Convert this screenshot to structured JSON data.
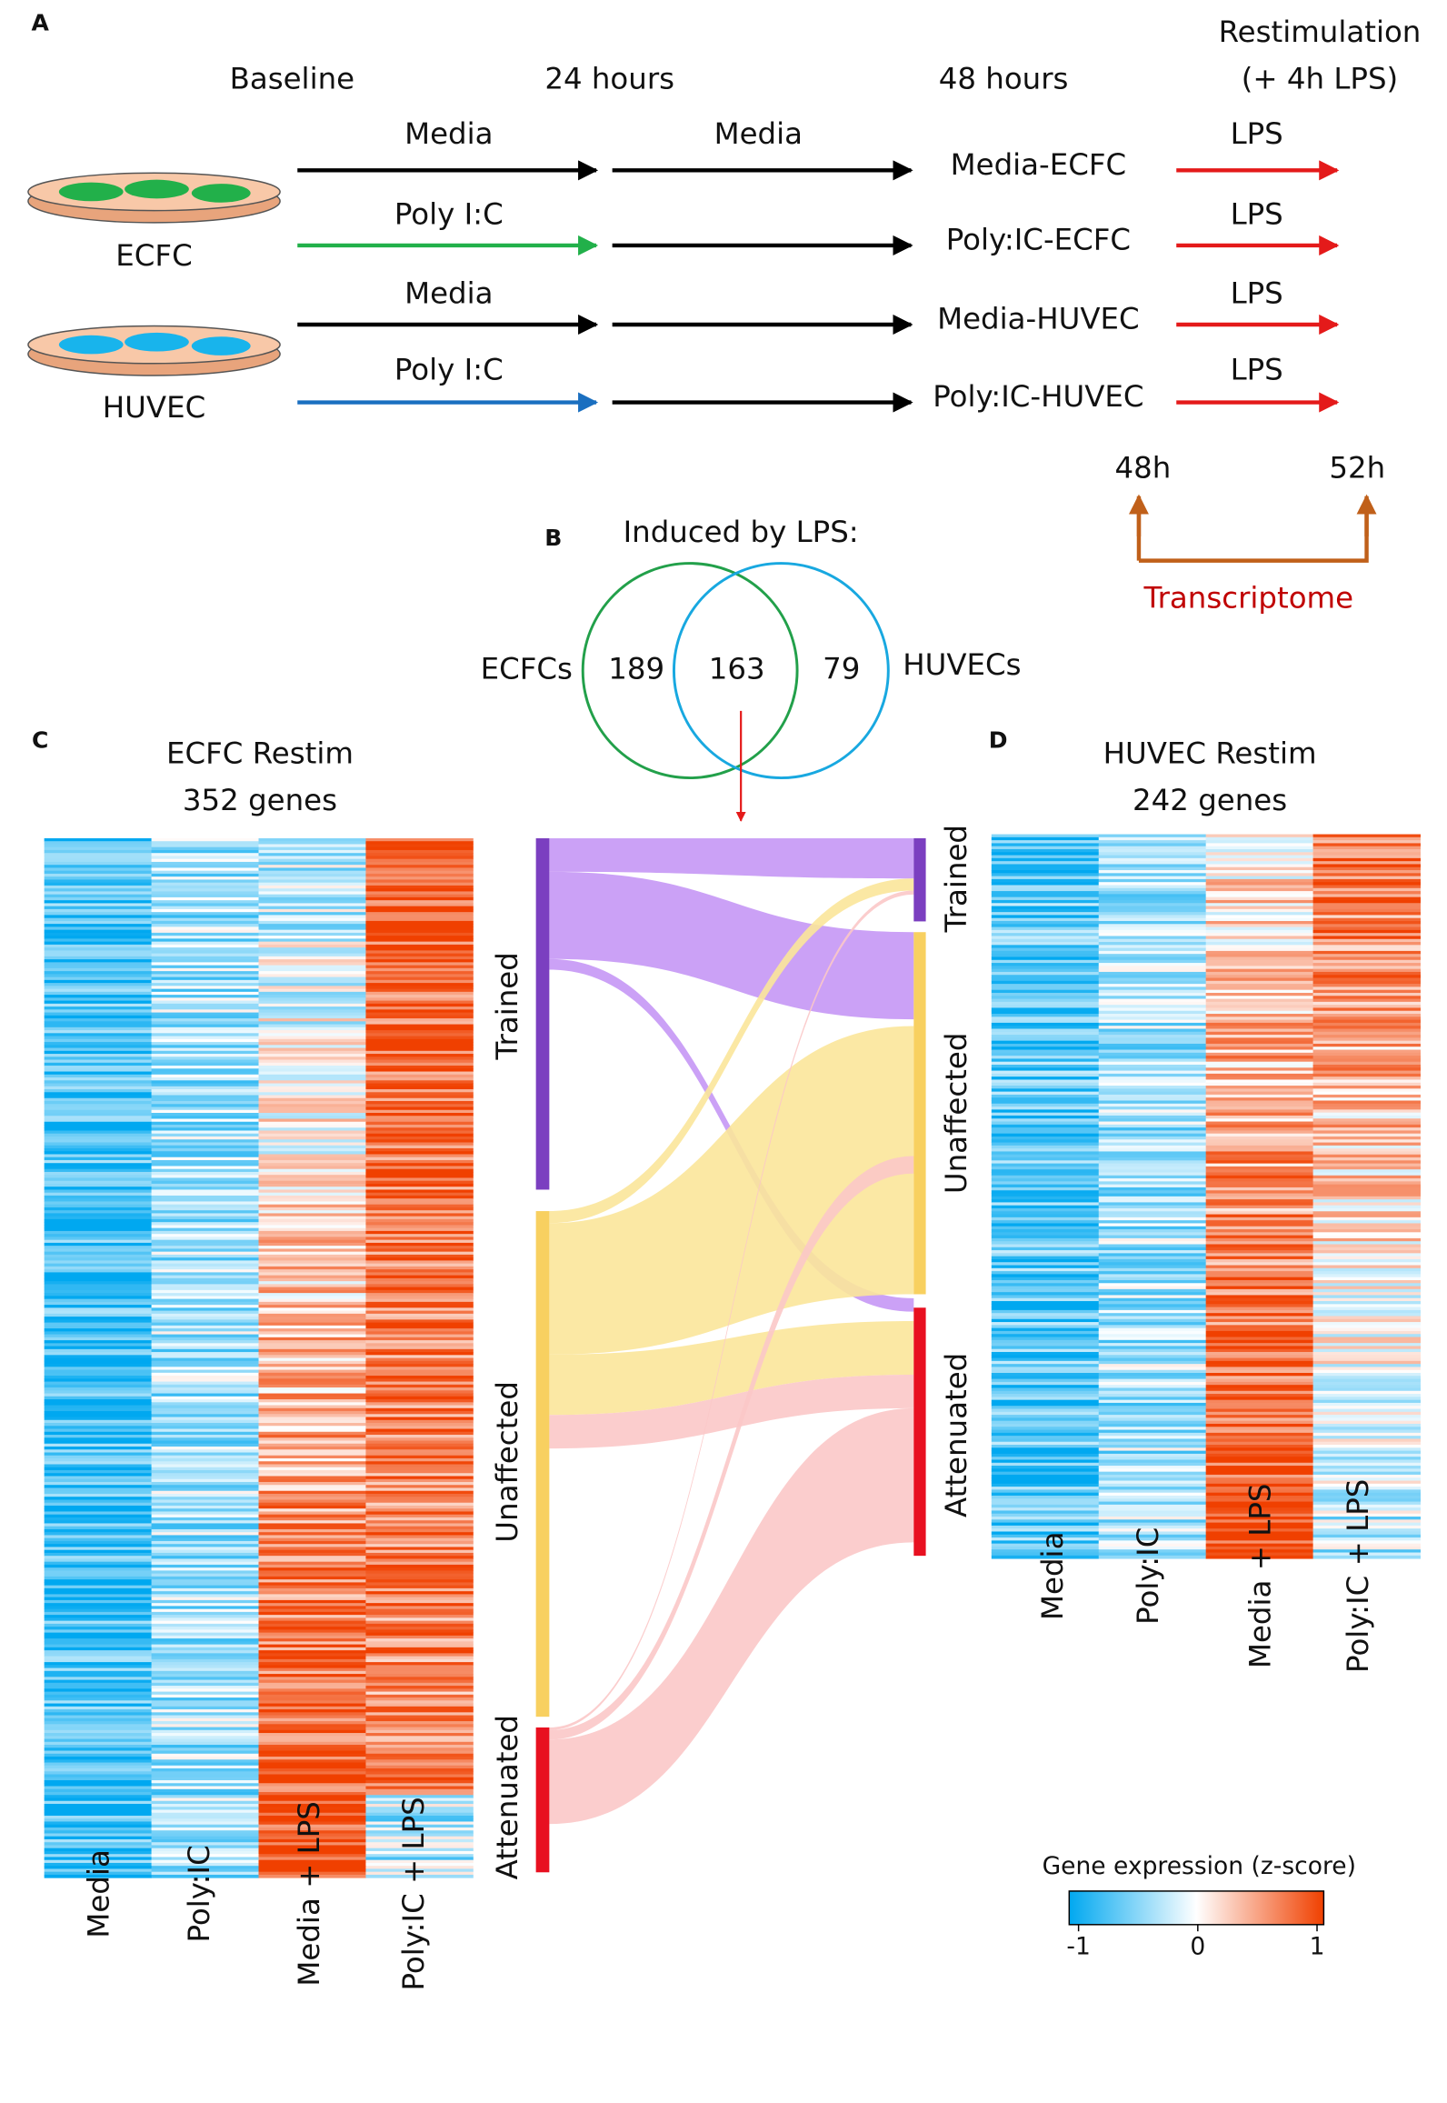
{
  "panel_a": {
    "label": "A",
    "timepoints": [
      "Baseline",
      "24 hours",
      "48 hours"
    ],
    "restimulation": [
      "Restimulation",
      "(+ 4h LPS)"
    ],
    "cells": [
      "ECFC",
      "HUVEC"
    ],
    "rows": [
      {
        "treatment": "Media",
        "second": "Media",
        "group": "Media-ECFC",
        "restim": "LPS"
      },
      {
        "treatment": "Poly I:C",
        "group": "Poly:IC-ECFC",
        "restim": "LPS"
      },
      {
        "treatment": "Media",
        "group": "Media-HUVEC",
        "restim": "LPS"
      },
      {
        "treatment": "Poly I:C",
        "group": "Poly:IC-HUVEC",
        "restim": "LPS"
      }
    ],
    "times": [
      "48h",
      "52h"
    ],
    "readout": "Transcriptome"
  },
  "panel_b": {
    "label": "B",
    "title": "Induced by LPS:",
    "sets": [
      "ECFCs",
      "HUVECs"
    ],
    "counts": [
      189,
      163,
      79
    ]
  },
  "panel_c": {
    "label": "C",
    "title": [
      "ECFC Restim",
      "352 genes"
    ],
    "columns": [
      "Media",
      "Poly:IC",
      "Media + LPS",
      "Poly:IC + LPS"
    ]
  },
  "panel_d": {
    "label": "D",
    "title": [
      "HUVEC Restim",
      "242 genes"
    ],
    "columns": [
      "Media",
      "Poly:IC",
      "Media + LPS",
      "Poly:IC + LPS"
    ]
  },
  "sankey": {
    "left": [
      "Trained",
      "Unaffected",
      "Attenuated"
    ],
    "right": [
      "Trained",
      "Unaffected",
      "Attenuated"
    ]
  },
  "legend": {
    "title": "Gene expression (z-score)",
    "ticks": [
      -1,
      0,
      1
    ]
  }
}
